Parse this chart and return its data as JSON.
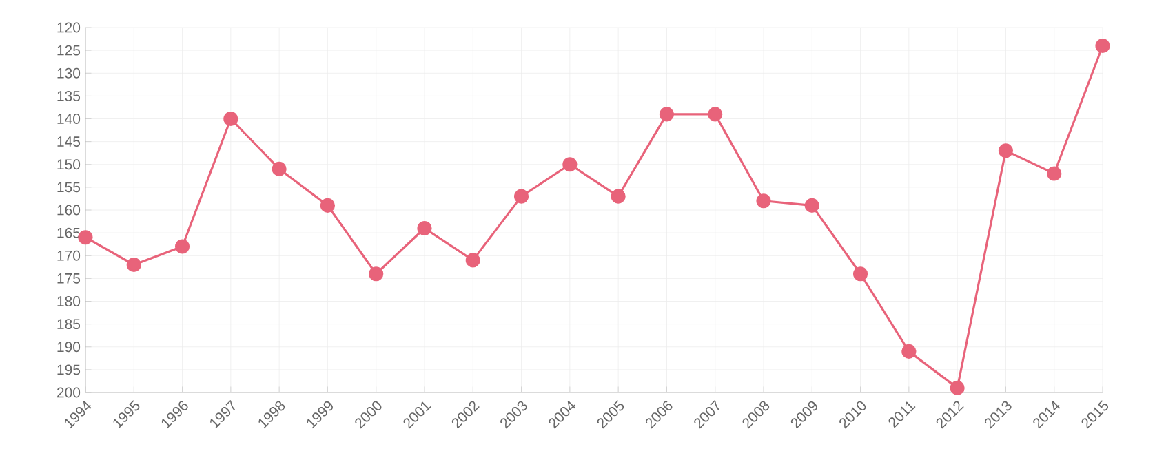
{
  "chart_data": {
    "type": "line",
    "categories": [
      "1994",
      "1995",
      "1996",
      "1997",
      "1998",
      "1999",
      "2000",
      "2001",
      "2002",
      "2003",
      "2004",
      "2005",
      "2006",
      "2007",
      "2008",
      "2009",
      "2010",
      "2011",
      "2012",
      "2013",
      "2014",
      "2015"
    ],
    "series": [
      {
        "color": "#e8637a",
        "values": [
          166,
          172,
          168,
          140,
          151,
          159,
          174,
          164,
          171,
          157,
          150,
          157,
          139,
          139,
          158,
          159,
          174,
          191,
          199,
          147,
          152,
          124
        ]
      }
    ],
    "ylim": [
      200,
      120
    ],
    "yticks": [
      120,
      125,
      130,
      135,
      140,
      145,
      150,
      155,
      160,
      165,
      170,
      175,
      180,
      185,
      190,
      195,
      200
    ],
    "grid": true,
    "marker": "circle",
    "line_style": "solid"
  }
}
